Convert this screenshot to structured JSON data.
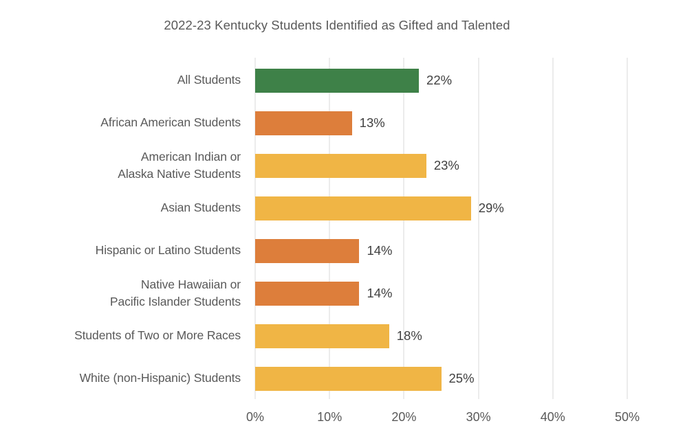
{
  "title": "2022-23 Kentucky Students Identified as Gifted and Talented",
  "colors": {
    "green": "#3E8148",
    "orange": "#DD7E3B",
    "yellow": "#F0B545",
    "gridline": "#D9D9D9",
    "title_text": "#595959",
    "category_text": "#595959",
    "value_text": "#404040",
    "background": "#FFFFFF"
  },
  "chart_data": {
    "type": "bar",
    "orientation": "horizontal",
    "title": "2022-23 Kentucky Students Identified as Gifted and Talented",
    "categories": [
      "All Students",
      "African American Students",
      "American Indian or\nAlaska Native Students",
      "Asian Students",
      "Hispanic or Latino Students",
      "Native Hawaiian or\nPacific Islander Students",
      "Students of Two or More Races",
      "White (non-Hispanic) Students"
    ],
    "values": [
      22,
      13,
      23,
      29,
      14,
      14,
      18,
      25
    ],
    "data_labels": [
      "22%",
      "13%",
      "23%",
      "29%",
      "14%",
      "14%",
      "18%",
      "25%"
    ],
    "bar_colors": [
      "#3E8148",
      "#DD7E3B",
      "#F0B545",
      "#F0B545",
      "#DD7E3B",
      "#DD7E3B",
      "#F0B545",
      "#F0B545"
    ],
    "xlim": [
      0,
      50
    ],
    "x_tick_values": [
      0,
      10,
      20,
      30,
      40,
      50
    ],
    "x_tick_labels": [
      "0%",
      "10%",
      "20%",
      "30%",
      "40%",
      "50%"
    ],
    "grid": true,
    "legend": false,
    "data_labels_position": "outside-end"
  }
}
